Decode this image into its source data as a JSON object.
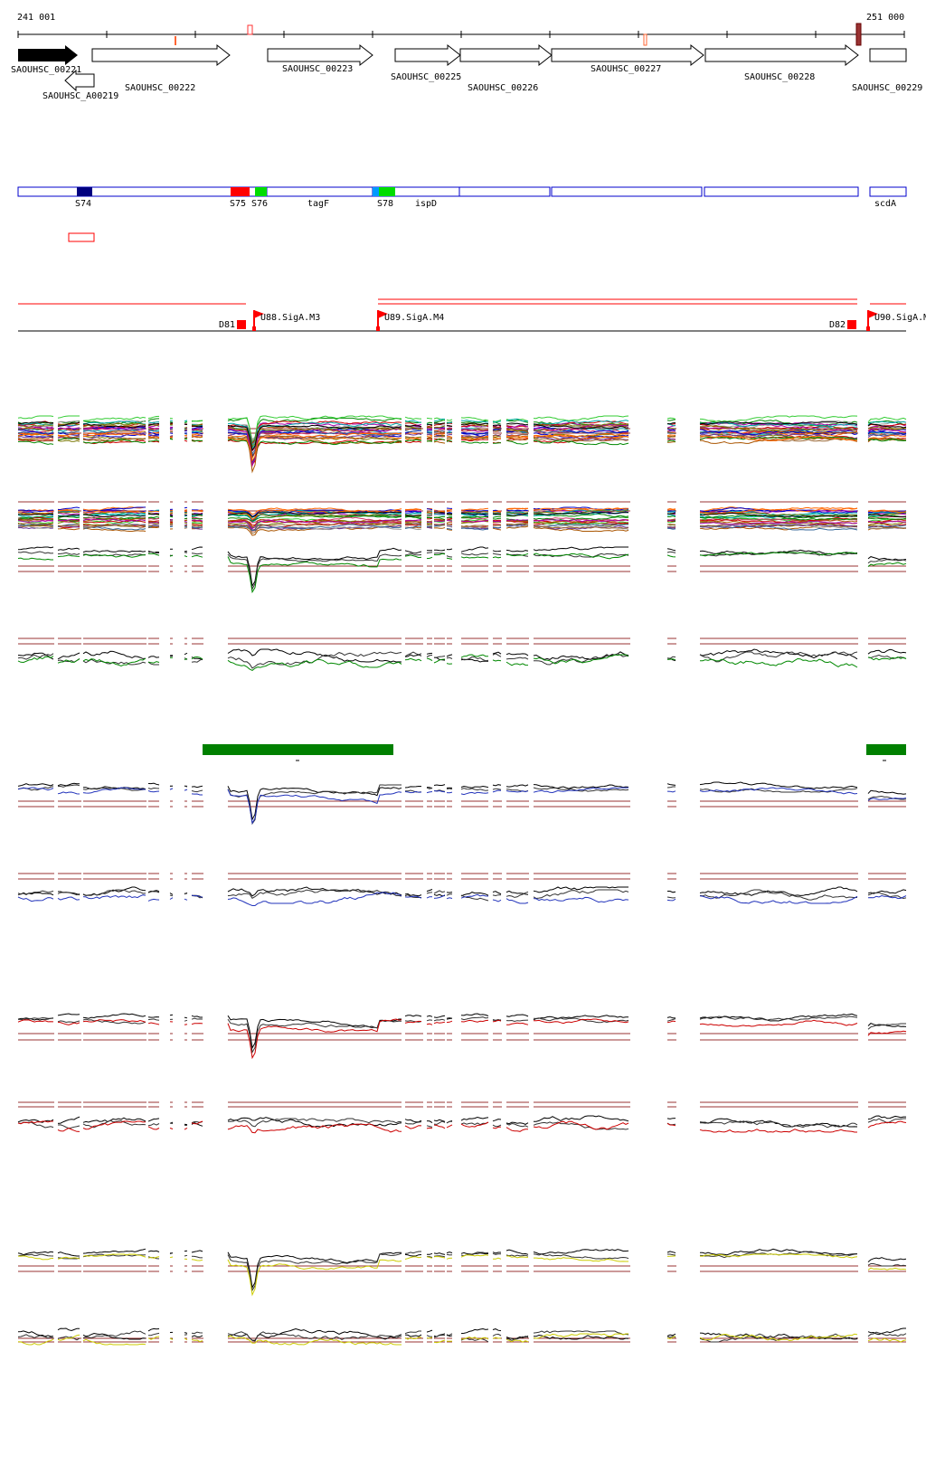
{
  "coords": {
    "start": "241 001",
    "end": "251 000"
  },
  "genes": [
    {
      "id": "g0221",
      "label": "SAOUHSC_00221"
    },
    {
      "id": "gA0219",
      "label": "SAOUHSC_A00219"
    },
    {
      "id": "g0222",
      "label": "SAOUHSC_00222"
    },
    {
      "id": "g0223",
      "label": "SAOUHSC_00223"
    },
    {
      "id": "g0225",
      "label": "SAOUHSC_00225"
    },
    {
      "id": "g0226",
      "label": "SAOUHSC_00226"
    },
    {
      "id": "g0227",
      "label": "SAOUHSC_00227"
    },
    {
      "id": "g0228",
      "label": "SAOUHSC_00228"
    },
    {
      "id": "g0229",
      "label": "SAOUHSC_00229"
    }
  ],
  "segments": [
    {
      "id": "s74",
      "label": "S74",
      "color": "#000080"
    },
    {
      "id": "s75",
      "label": "S75",
      "color": "#ff0000"
    },
    {
      "id": "s76",
      "label": "S76",
      "color": "#00dd00"
    },
    {
      "id": "tagF",
      "label": "tagF"
    },
    {
      "id": "s78",
      "label": "S78",
      "color": "#00dd00"
    },
    {
      "id": "ispD",
      "label": "ispD"
    },
    {
      "id": "scdA",
      "label": "scdA"
    }
  ],
  "promoters": [
    {
      "id": "d81",
      "label": "D81"
    },
    {
      "id": "u88",
      "label": "U88.SigA.M3"
    },
    {
      "id": "u89",
      "label": "U89.SigA.M4"
    },
    {
      "id": "d82",
      "label": "D82"
    },
    {
      "id": "u90",
      "label": "U90.SigA.M"
    }
  ],
  "colors": {
    "gene_outline": "#000000",
    "segment_outline": "#0000cc",
    "promoter": "#ff0000",
    "threshold": "#993333",
    "green_series": "#008800",
    "blue_series": "#2233bb",
    "red_series": "#cc0000",
    "yellow_series": "#cccc00",
    "highlight_bar": "#008000"
  },
  "tracks": [
    {
      "id": "multi-top",
      "color": "multicolor"
    },
    {
      "id": "multi-bottom",
      "color": "multicolor"
    },
    {
      "id": "green-top",
      "color": "#008800"
    },
    {
      "id": "green-bottom",
      "color": "#008800"
    },
    {
      "id": "blue-top",
      "color": "#2233bb"
    },
    {
      "id": "blue-bottom",
      "color": "#2233bb"
    },
    {
      "id": "red-top",
      "color": "#cc0000"
    },
    {
      "id": "red-bottom",
      "color": "#cc0000"
    },
    {
      "id": "yellow-top",
      "color": "#cccc00"
    },
    {
      "id": "yellow-bottom",
      "color": "#cccc00"
    }
  ]
}
